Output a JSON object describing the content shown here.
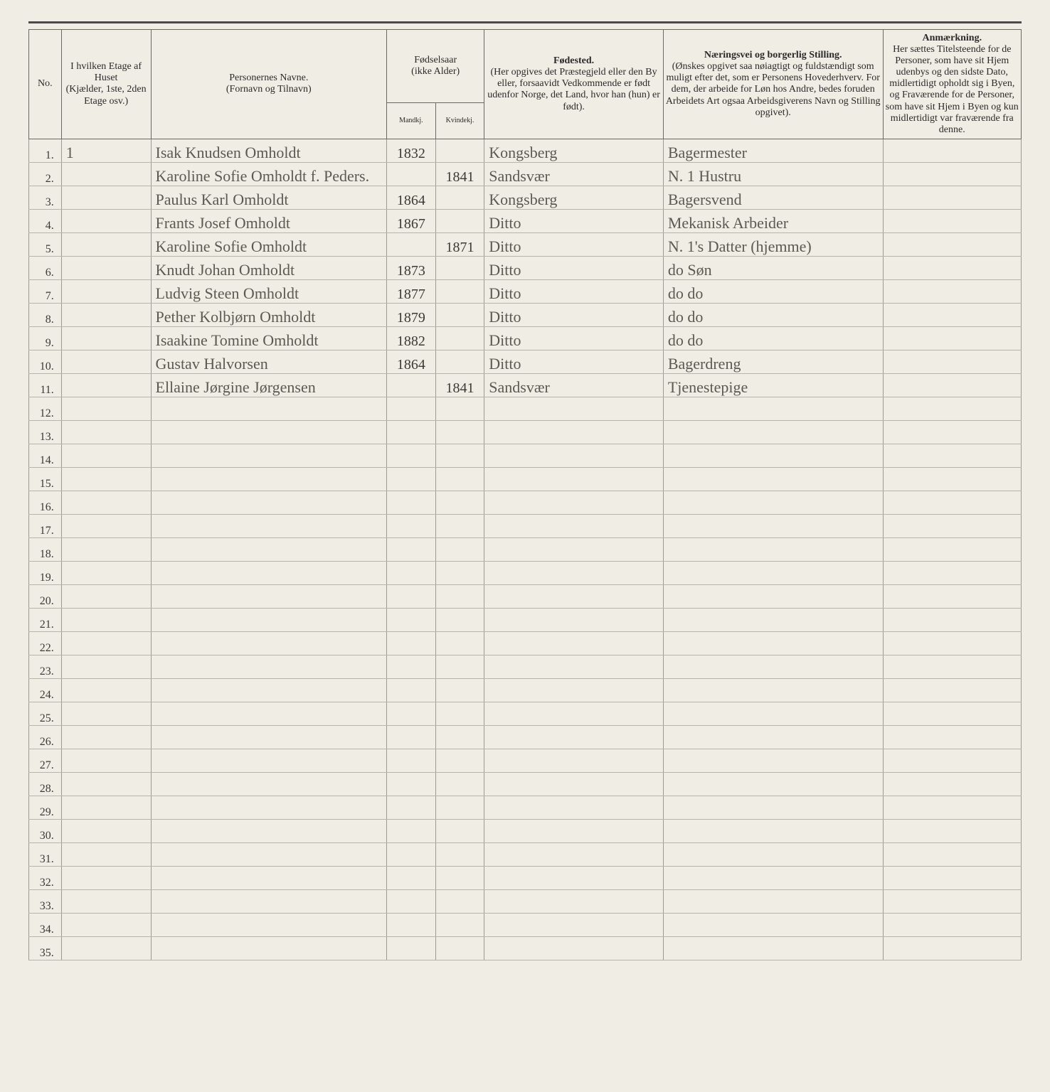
{
  "headers": {
    "no": "No.",
    "etage": "I hvilken Etage af Huset",
    "etage_sub": "(Kjælder, 1ste, 2den Etage osv.)",
    "name": "Personernes Navne.",
    "name_sub": "(Fornavn og Tilnavn)",
    "year": "Fødselsaar",
    "year_sub": "(ikke Alder)",
    "year_m": "Mandkj.",
    "year_f": "Kvindekj.",
    "birthplace": "Fødested.",
    "birthplace_sub": "(Her opgives det Præstegjeld eller den By eller, forsaavidt Vedkommende er født udenfor Norge, det Land, hvor han (hun) er født).",
    "occupation": "Næringsvei og borgerlig Stilling.",
    "occupation_sub": "(Ønskes opgivet saa nøiagtigt og fuldstændigt som muligt efter det, som er Personens Hovederhverv. For dem, der arbeide for Løn hos Andre, bedes foruden Arbeidets Art ogsaa Arbeidsgiverens Navn og Stilling opgivet).",
    "remarks": "Anmærkning.",
    "remarks_sub": "Her sættes Titelsteende for de Personer, som have sit Hjem udenbys og den sidste Dato, midlertidigt opholdt sig i Byen, og Fraværende for de Personer, som have sit Hjem i Byen og kun midlertidigt var fraværende fra denne."
  },
  "total_rows": 35,
  "rows": [
    {
      "no": "1.",
      "etage": "1",
      "name": "Isak Knudsen Omholdt",
      "ym": "1832",
      "yf": "",
      "place": "Kongsberg",
      "occ": "Bagermester",
      "rem": ""
    },
    {
      "no": "2.",
      "etage": "",
      "name": "Karoline Sofie Omholdt f. Peders.",
      "ym": "",
      "yf": "1841",
      "place": "Sandsvær",
      "occ": "N. 1 Hustru",
      "rem": ""
    },
    {
      "no": "3.",
      "etage": "",
      "name": "Paulus Karl Omholdt",
      "ym": "1864",
      "yf": "",
      "place": "Kongsberg",
      "occ": "Bagersvend",
      "rem": ""
    },
    {
      "no": "4.",
      "etage": "",
      "name": "Frants Josef Omholdt",
      "ym": "1867",
      "yf": "",
      "place": "Ditto",
      "occ": "Mekanisk Arbeider",
      "rem": ""
    },
    {
      "no": "5.",
      "etage": "",
      "name": "Karoline Sofie Omholdt",
      "ym": "",
      "yf": "1871",
      "place": "Ditto",
      "occ": "N. 1's Datter (hjemme)",
      "rem": ""
    },
    {
      "no": "6.",
      "etage": "",
      "name": "Knudt Johan Omholdt",
      "ym": "1873",
      "yf": "",
      "place": "Ditto",
      "occ": "do     Søn",
      "rem": ""
    },
    {
      "no": "7.",
      "etage": "",
      "name": "Ludvig Steen Omholdt",
      "ym": "1877",
      "yf": "",
      "place": "Ditto",
      "occ": "do    do",
      "rem": ""
    },
    {
      "no": "8.",
      "etage": "",
      "name": "Pether Kolbjørn Omholdt",
      "ym": "1879",
      "yf": "",
      "place": "Ditto",
      "occ": "do   do",
      "rem": ""
    },
    {
      "no": "9.",
      "etage": "",
      "name": "Isaakine Tomine Omholdt",
      "ym": "1882",
      "yf": "",
      "place": "Ditto",
      "occ": "do   do",
      "rem": ""
    },
    {
      "no": "10.",
      "etage": "",
      "name": "Gustav Halvorsen",
      "ym": "1864",
      "yf": "",
      "place": "Ditto",
      "occ": "Bagerdreng",
      "rem": ""
    },
    {
      "no": "11.",
      "etage": "",
      "name": "Ellaine Jørgine Jørgensen",
      "ym": "",
      "yf": "1841",
      "place": "Sandsvær",
      "occ": "Tjenestepige",
      "rem": ""
    }
  ]
}
